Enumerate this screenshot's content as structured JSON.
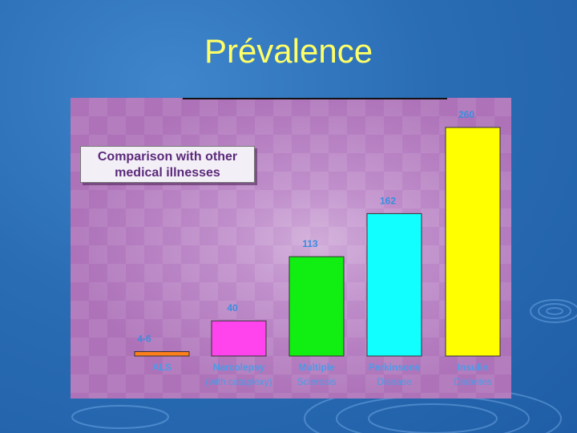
{
  "slide": {
    "title": "Prévalence"
  },
  "note": {
    "line1": "Comparison with other",
    "line2": "medical illnesses"
  },
  "chart_data": {
    "type": "bar",
    "categories": [
      "ALS",
      "Narcolepsy",
      "Multiple",
      "Parkinsons",
      "Insulin"
    ],
    "category_sublabels": [
      "",
      "(with cataplexy)",
      "Sclerosis",
      "Disease",
      "Diabetes"
    ],
    "values": [
      5,
      40,
      113,
      162,
      260
    ],
    "value_labels": [
      "4-6",
      "40",
      "113",
      "162",
      "260"
    ],
    "colors": [
      "#ff7f1a",
      "#ff44ee",
      "#11ee11",
      "#11ffff",
      "#ffff00"
    ],
    "ylim": [
      0,
      270
    ],
    "title": "",
    "xlabel": "",
    "ylabel": ""
  }
}
